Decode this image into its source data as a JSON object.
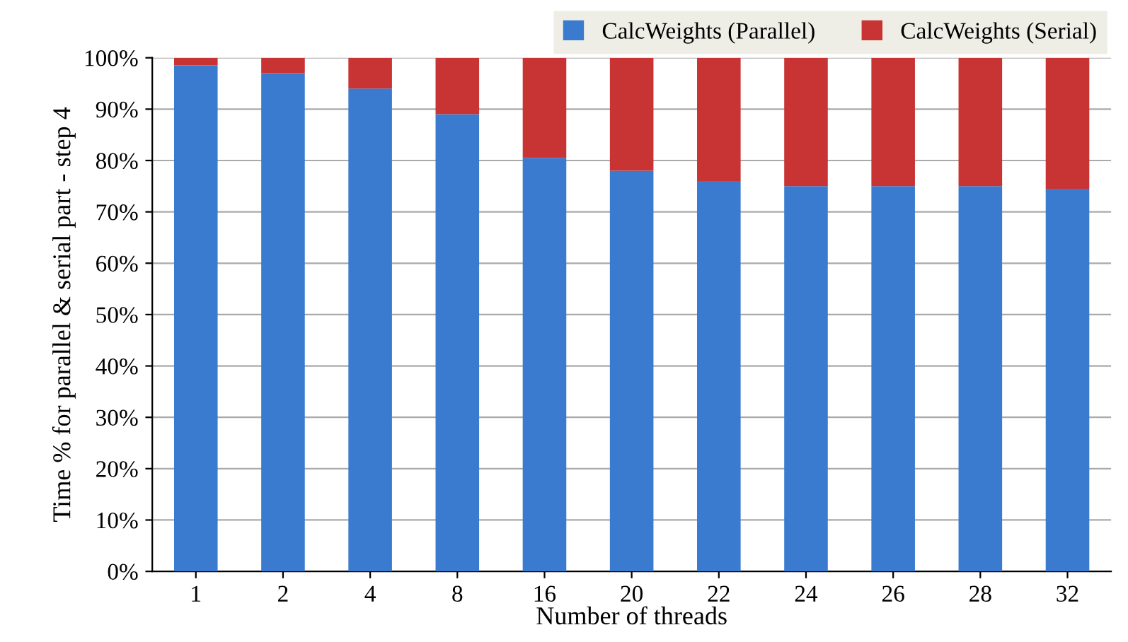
{
  "chart_data": {
    "type": "bar",
    "stacked": true,
    "xlabel": "Number of threads",
    "ylabel": "Time % for parallel & serial part - step 4",
    "categories": [
      "1",
      "2",
      "4",
      "8",
      "16",
      "20",
      "22",
      "24",
      "26",
      "28",
      "32"
    ],
    "series": [
      {
        "name": "CalcWeights (Parallel)",
        "color": "#3a7bd0",
        "values": [
          98.5,
          97,
          94,
          89,
          80.5,
          78,
          76,
          75,
          75,
          75,
          74.5
        ]
      },
      {
        "name": "CalcWeights (Serial)",
        "color": "#c83434",
        "values": [
          1.5,
          3,
          6,
          11,
          19.5,
          22,
          24,
          25,
          25,
          25,
          25.5
        ]
      }
    ],
    "ylim": [
      0,
      100
    ],
    "yticks": [
      {
        "value": 0,
        "label": "0%"
      },
      {
        "value": 10,
        "label": "10%"
      },
      {
        "value": 20,
        "label": "20%"
      },
      {
        "value": 30,
        "label": "30%"
      },
      {
        "value": 40,
        "label": "40%"
      },
      {
        "value": 50,
        "label": "50%"
      },
      {
        "value": 60,
        "label": "60%"
      },
      {
        "value": 70,
        "label": "70%"
      },
      {
        "value": 80,
        "label": "80%"
      },
      {
        "value": 90,
        "label": "90%"
      },
      {
        "value": 100,
        "label": "100%"
      }
    ],
    "grid": "y",
    "legend": "top right"
  }
}
